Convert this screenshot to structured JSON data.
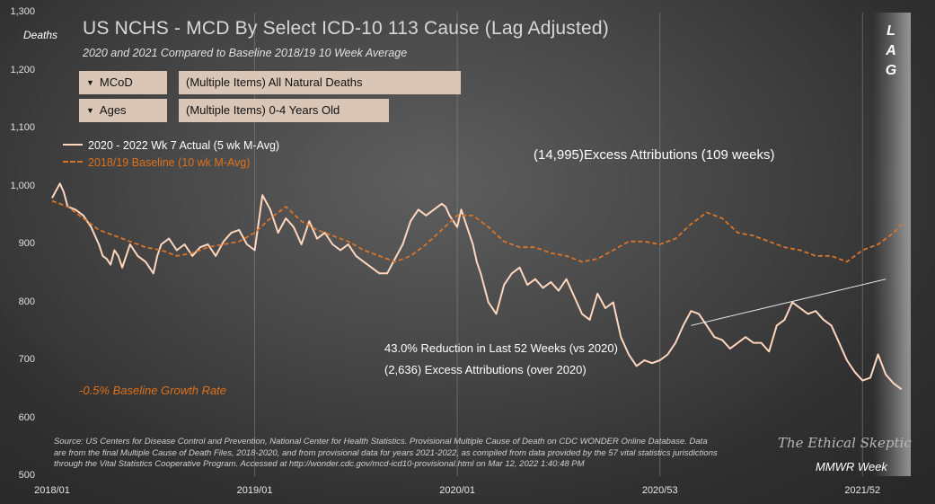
{
  "filters": [
    {
      "label": "MCoD",
      "value": "(Multiple Items)  All Natural Deaths"
    },
    {
      "label": "Ages",
      "value": "(Multiple Items)  0-4 Years Old"
    }
  ],
  "colors": {
    "actual": "#ffd7bf",
    "baseline": "#d9742a",
    "growth_text": "#e0701a",
    "filter_bg": "#d9c6b6"
  },
  "chart_data": {
    "type": "line",
    "title": "US NCHS - MCD By Select ICD-10 113 Cause (Lag Adjusted)",
    "subtitle": "2020  and 2021  Compared to Baseline 2018/19  10 Week Average",
    "ylabel": "Deaths",
    "xlabel": "MMWR Week",
    "ylim": [
      500,
      1300
    ],
    "yticks": [
      500,
      600,
      700,
      800,
      900,
      1000,
      1100,
      1200,
      1300
    ],
    "ytick_labels": [
      "500",
      "600",
      "700",
      "800",
      "900",
      "1,000",
      "1,100",
      "1,200",
      "1,300"
    ],
    "xticks": [
      {
        "label": "2018/01",
        "week": 0
      },
      {
        "label": "2019/01",
        "week": 52
      },
      {
        "label": "2020/01",
        "week": 104
      },
      {
        "label": "2020/53",
        "week": 156
      },
      {
        "label": "2021/52",
        "week": 208
      }
    ],
    "xlim": [
      0,
      219
    ],
    "grid": {
      "vertical": true,
      "horizontal": false
    },
    "legend_position": "top-left",
    "series": [
      {
        "name": "2020  - 2022  Wk 7 Actual (5 wk M-Avg)",
        "style": "solid",
        "x": [
          0,
          2,
          3,
          4,
          6,
          8,
          10,
          12,
          13,
          14,
          15,
          16,
          17,
          18,
          20,
          22,
          24,
          26,
          27,
          28,
          30,
          32,
          34,
          36,
          38,
          40,
          42,
          44,
          46,
          48,
          50,
          52,
          54,
          56,
          58,
          60,
          62,
          64,
          66,
          68,
          70,
          72,
          74,
          76,
          78,
          80,
          82,
          84,
          86,
          88,
          90,
          92,
          94,
          96,
          98,
          100,
          101,
          102,
          103,
          104,
          105,
          106,
          108,
          109,
          110,
          112,
          114,
          116,
          118,
          120,
          121,
          122,
          124,
          126,
          128,
          130,
          132,
          134,
          136,
          138,
          140,
          142,
          144,
          146,
          148,
          150,
          152,
          154,
          156,
          158,
          160,
          162,
          164,
          166,
          168,
          170,
          172,
          174,
          176,
          178,
          180,
          182,
          184,
          186,
          188,
          190,
          192,
          194,
          196,
          198,
          200,
          202,
          204,
          206,
          208,
          210,
          212,
          214,
          216,
          218
        ],
        "values": [
          980,
          1005,
          990,
          965,
          960,
          950,
          930,
          900,
          880,
          875,
          865,
          890,
          880,
          860,
          900,
          880,
          870,
          850,
          880,
          900,
          910,
          890,
          900,
          880,
          895,
          900,
          880,
          905,
          920,
          925,
          900,
          890,
          985,
          960,
          920,
          945,
          930,
          900,
          940,
          910,
          920,
          900,
          890,
          900,
          880,
          870,
          860,
          850,
          850,
          875,
          900,
          940,
          960,
          950,
          960,
          970,
          965,
          950,
          940,
          930,
          960,
          940,
          900,
          870,
          850,
          800,
          780,
          830,
          850,
          860,
          845,
          830,
          840,
          825,
          835,
          820,
          840,
          810,
          780,
          770,
          815,
          790,
          800,
          740,
          710,
          690,
          700,
          695,
          700,
          710,
          730,
          760,
          785,
          780,
          760,
          740,
          735,
          720,
          730,
          740,
          730,
          730,
          715,
          760,
          770,
          800,
          790,
          780,
          785,
          770,
          760,
          730,
          700,
          680,
          665,
          670,
          710,
          675,
          660,
          650
        ]
      },
      {
        "name": "2018/19  Baseline (10 wk M-Avg)",
        "style": "dashed",
        "x": [
          0,
          4,
          8,
          12,
          16,
          20,
          24,
          28,
          32,
          36,
          40,
          44,
          48,
          52,
          56,
          60,
          64,
          68,
          72,
          76,
          80,
          84,
          88,
          92,
          96,
          100,
          104,
          108,
          112,
          116,
          120,
          124,
          128,
          132,
          136,
          140,
          144,
          148,
          152,
          156,
          160,
          164,
          168,
          172,
          176,
          180,
          184,
          188,
          192,
          196,
          200,
          204,
          208,
          212,
          216,
          218
        ],
        "values": [
          975,
          965,
          945,
          925,
          915,
          905,
          895,
          890,
          880,
          885,
          895,
          900,
          905,
          920,
          945,
          965,
          940,
          925,
          915,
          905,
          890,
          880,
          870,
          880,
          900,
          925,
          950,
          950,
          930,
          905,
          895,
          895,
          885,
          880,
          870,
          875,
          890,
          905,
          905,
          900,
          910,
          935,
          955,
          945,
          920,
          915,
          905,
          895,
          890,
          880,
          880,
          870,
          890,
          900,
          920,
          935
        ]
      }
    ],
    "trendline": {
      "x": [
        164,
        214
      ],
      "y": [
        760,
        840
      ]
    },
    "annotations": {
      "excess_total": "(14,995)Excess Attributions (109 weeks)",
      "reduction": "43.0%  Reduction in Last 52 Weeks (vs 2020)",
      "excess_2020": "(2,636)  Excess Attributions (over 2020)",
      "growth_rate": "-0.5% Baseline Growth Rate"
    },
    "source": "Source: US Centers for Disease Control and Prevention, National Center for Health Statistics. Provisional Multiple Cause of Death on CDC WONDER Online Database. Data are from the final Multiple Cause of Death Files, 2018-2020, and from provisional data for years 2021-2022, as compiled from data provided by the 57 vital statistics jurisdictions through the Vital Statistics Cooperative Program. Accessed at http://wonder.cdc.gov/mcd-icd10-provisional.html on Mar 12, 2022 1:40:48 PM",
    "brand": "The Ethical Skeptic",
    "lag_label": [
      "L",
      "A",
      "G"
    ]
  }
}
